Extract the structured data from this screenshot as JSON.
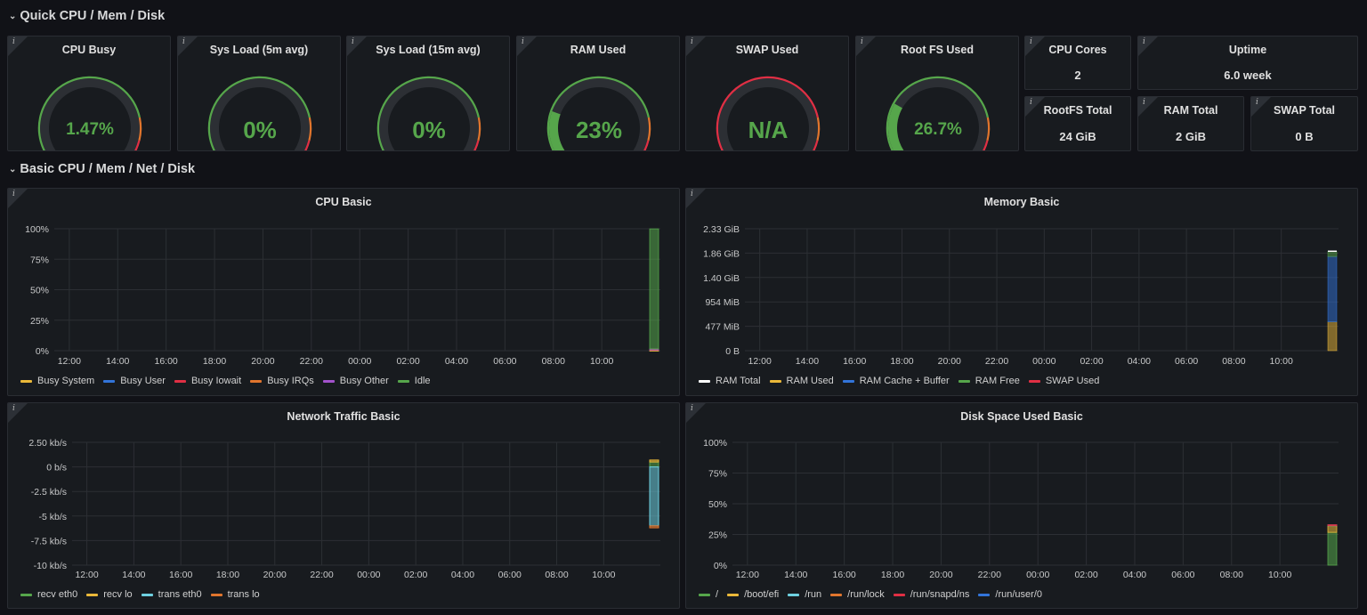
{
  "rows": [
    {
      "title": "Quick CPU / Mem / Disk"
    },
    {
      "title": "Basic CPU / Mem / Net / Disk"
    }
  ],
  "gauges": [
    {
      "title": "CPU Busy",
      "value": "1.47%",
      "fraction": 0.0147,
      "thresholds": "green-orange-red"
    },
    {
      "title": "Sys Load (5m avg)",
      "value": "0%",
      "fraction": 0,
      "thresholds": "green-orange-red"
    },
    {
      "title": "Sys Load (15m avg)",
      "value": "0%",
      "fraction": 0,
      "thresholds": "green-orange-red"
    },
    {
      "title": "RAM Used",
      "value": "23%",
      "fraction": 0.23,
      "thresholds": "green-orange-red"
    },
    {
      "title": "SWAP Used",
      "value": "N/A",
      "fraction": 0,
      "thresholds": "red-orange-red"
    },
    {
      "title": "Root FS Used",
      "value": "26.7%",
      "fraction": 0.267,
      "thresholds": "green-orange-red"
    }
  ],
  "stats": [
    {
      "title": "CPU Cores",
      "value": "2"
    },
    {
      "title": "Uptime",
      "value": "6.0 week"
    },
    {
      "title": "RootFS Total",
      "value": "24 GiB"
    },
    {
      "title": "RAM Total",
      "value": "2 GiB"
    },
    {
      "title": "SWAP Total",
      "value": "0 B"
    }
  ],
  "colors": {
    "green": "#56a64b",
    "orange": "#e0752d",
    "red": "#e02f44",
    "yellow": "#eab839",
    "blue": "#3274d9",
    "purple": "#a352cc",
    "lightblue": "#6ed0e0",
    "white": "#ffffff",
    "track": "#2c2f34"
  },
  "charts": [
    {
      "title": "CPU Basic",
      "chart_data": {
        "type": "area",
        "yticks": [
          "100%",
          "75%",
          "50%",
          "25%",
          "0%"
        ],
        "ylim": [
          0,
          100
        ],
        "xticks": [
          "12:00",
          "14:00",
          "16:00",
          "18:00",
          "20:00",
          "22:00",
          "00:00",
          "02:00",
          "04:00",
          "06:00",
          "08:00",
          "10:00"
        ],
        "series": [
          {
            "name": "Busy System",
            "color": "#eab839",
            "values": [
              0.3
            ]
          },
          {
            "name": "Busy User",
            "color": "#3274d9",
            "values": [
              0.7
            ]
          },
          {
            "name": "Busy Iowait",
            "color": "#e02f44",
            "values": [
              0.1
            ]
          },
          {
            "name": "Busy IRQs",
            "color": "#e0752d",
            "values": [
              0.2
            ]
          },
          {
            "name": "Busy Other",
            "color": "#a352cc",
            "values": [
              0.1
            ]
          },
          {
            "name": "Idle",
            "color": "#56a64b",
            "values": [
              98.5
            ]
          }
        ]
      }
    },
    {
      "title": "Memory Basic",
      "chart_data": {
        "type": "area",
        "yticks": [
          "2.33 GiB",
          "1.86 GiB",
          "1.40 GiB",
          "954 MiB",
          "477 MiB",
          "0 B"
        ],
        "ylim": [
          0,
          2.33
        ],
        "xticks": [
          "12:00",
          "14:00",
          "16:00",
          "18:00",
          "20:00",
          "22:00",
          "00:00",
          "02:00",
          "04:00",
          "06:00",
          "08:00",
          "10:00"
        ],
        "series": [
          {
            "name": "RAM Total",
            "color": "#ffffff",
            "values": [
              1.9
            ]
          },
          {
            "name": "RAM Used",
            "color": "#eab839",
            "values": [
              0.55
            ]
          },
          {
            "name": "RAM Cache + Buffer",
            "color": "#3274d9",
            "values": [
              1.25
            ]
          },
          {
            "name": "RAM Free",
            "color": "#56a64b",
            "values": [
              0.1
            ]
          },
          {
            "name": "SWAP Used",
            "color": "#e02f44",
            "values": [
              0
            ]
          }
        ]
      }
    },
    {
      "title": "Network Traffic Basic",
      "chart_data": {
        "type": "area",
        "yticks": [
          "2.50 kb/s",
          "0 b/s",
          "-2.5 kb/s",
          "-5 kb/s",
          "-7.5 kb/s",
          "-10 kb/s"
        ],
        "ylim": [
          -10,
          2.5
        ],
        "xticks": [
          "12:00",
          "14:00",
          "16:00",
          "18:00",
          "20:00",
          "22:00",
          "00:00",
          "02:00",
          "04:00",
          "06:00",
          "08:00",
          "10:00"
        ],
        "series": [
          {
            "name": "recv eth0",
            "color": "#56a64b",
            "values": [
              0.5
            ]
          },
          {
            "name": "recv lo",
            "color": "#eab839",
            "values": [
              0.2
            ]
          },
          {
            "name": "trans eth0",
            "color": "#6ed0e0",
            "values": [
              -6
            ]
          },
          {
            "name": "trans lo",
            "color": "#e0752d",
            "values": [
              -0.2
            ]
          }
        ]
      }
    },
    {
      "title": "Disk Space Used Basic",
      "chart_data": {
        "type": "area",
        "yticks": [
          "100%",
          "75%",
          "50%",
          "25%",
          "0%"
        ],
        "ylim": [
          0,
          100
        ],
        "xticks": [
          "12:00",
          "14:00",
          "16:00",
          "18:00",
          "20:00",
          "22:00",
          "00:00",
          "02:00",
          "04:00",
          "06:00",
          "08:00",
          "10:00"
        ],
        "series": [
          {
            "name": "/",
            "color": "#56a64b",
            "values": [
              26.7
            ]
          },
          {
            "name": "/boot/efi",
            "color": "#eab839",
            "values": [
              6
            ]
          },
          {
            "name": "/run",
            "color": "#6ed0e0",
            "values": [
              0.1
            ]
          },
          {
            "name": "/run/lock",
            "color": "#e0752d",
            "values": [
              0
            ]
          },
          {
            "name": "/run/snapd/ns",
            "color": "#e02f44",
            "values": [
              0.1
            ]
          },
          {
            "name": "/run/user/0",
            "color": "#3274d9",
            "values": [
              0
            ]
          }
        ]
      }
    }
  ]
}
